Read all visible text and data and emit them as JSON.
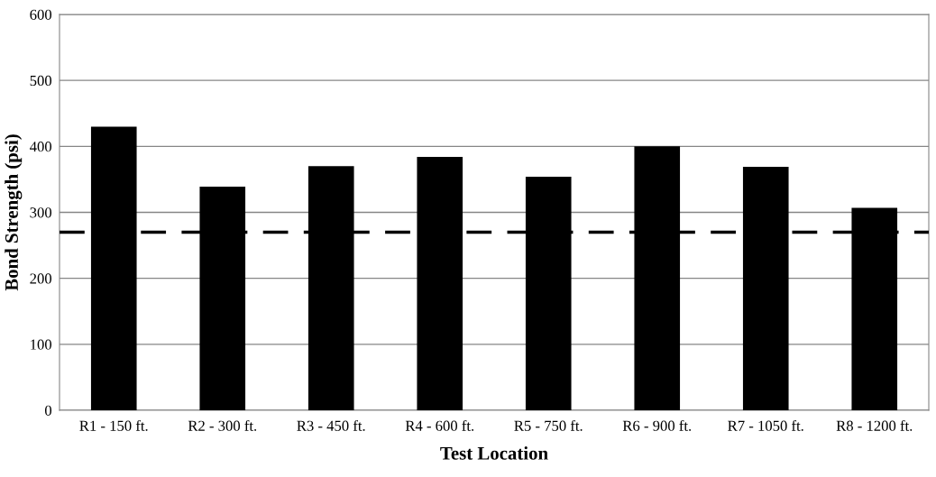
{
  "chart_data": {
    "type": "bar",
    "xlabel": "Test Location",
    "ylabel": "Bond Strength (psi)",
    "categories": [
      "R1 - 150 ft.",
      "R2 - 300 ft.",
      "R3 - 450 ft.",
      "R4 - 600 ft.",
      "R5 - 750 ft.",
      "R6 - 900 ft.",
      "R7 - 1050 ft.",
      "R8 - 1200 ft."
    ],
    "values": [
      430,
      339,
      370,
      384,
      354,
      400,
      369,
      307
    ],
    "color": "#000000",
    "ylim": [
      0,
      600
    ],
    "yticks": [
      0,
      100,
      200,
      300,
      400,
      500,
      600
    ],
    "grid": "y",
    "ref_lines": [
      {
        "axis": "y",
        "value": 270,
        "color": "#000000",
        "line_style": "dashed"
      }
    ]
  }
}
